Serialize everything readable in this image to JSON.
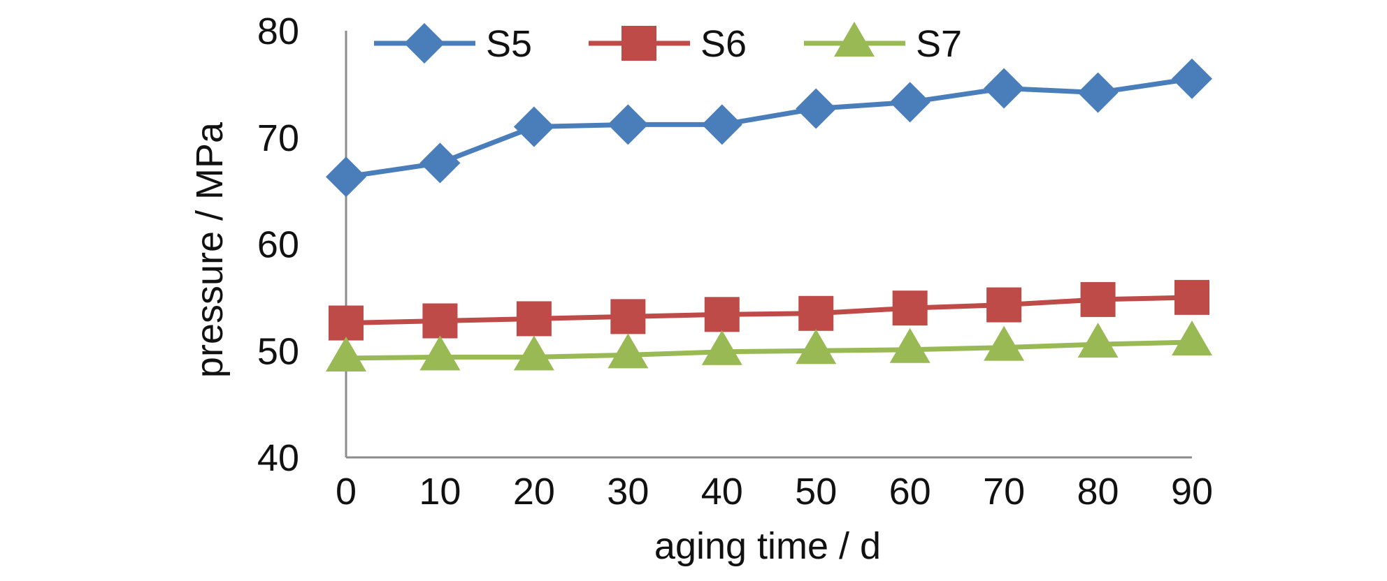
{
  "chart_data": {
    "type": "line",
    "x": [
      0,
      10,
      20,
      30,
      40,
      50,
      60,
      70,
      80,
      90
    ],
    "xticks": [
      "0",
      "10",
      "20",
      "30",
      "40",
      "50",
      "60",
      "70",
      "80",
      "90"
    ],
    "yticks": [
      "40",
      "50",
      "60",
      "70",
      "80"
    ],
    "xlabel": "aging time / d",
    "ylabel": "pressure / MPa",
    "ylim": [
      40,
      80
    ],
    "grid": false,
    "legend_position": "top",
    "series": [
      {
        "name": "S5",
        "color": "#4a7ebb",
        "marker": "diamond",
        "values": [
          66.3,
          67.6,
          71.0,
          71.2,
          71.2,
          72.7,
          73.3,
          74.6,
          74.2,
          75.5
        ]
      },
      {
        "name": "S6",
        "color": "#be4b48",
        "marker": "square",
        "values": [
          52.6,
          52.8,
          53.0,
          53.2,
          53.4,
          53.5,
          54.0,
          54.3,
          54.8,
          55.0
        ]
      },
      {
        "name": "S7",
        "color": "#98b954",
        "marker": "triangle",
        "values": [
          49.3,
          49.4,
          49.4,
          49.6,
          49.9,
          50.0,
          50.1,
          50.3,
          50.6,
          50.8
        ]
      }
    ]
  }
}
